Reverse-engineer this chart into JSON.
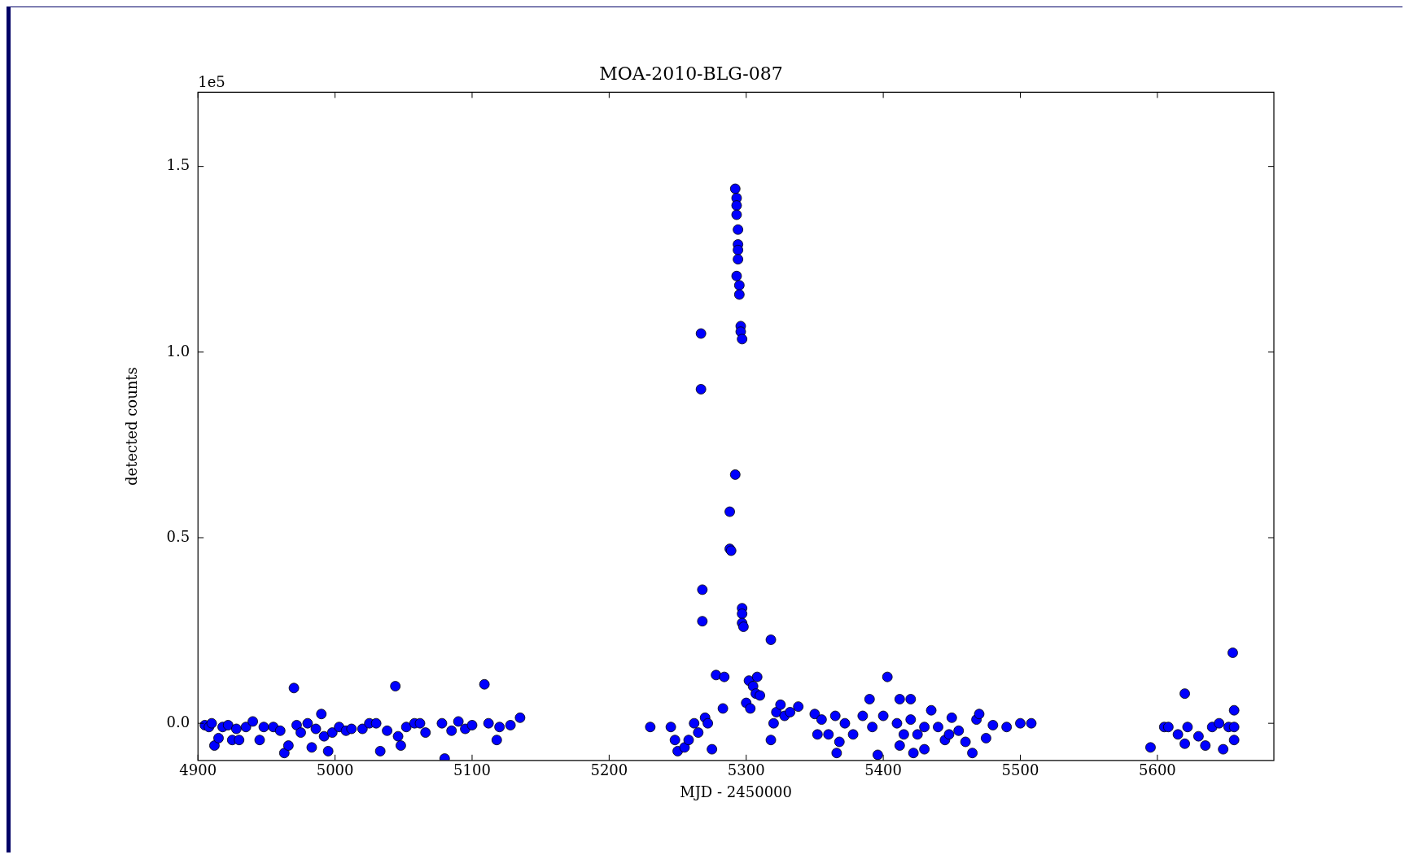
{
  "chart_data": {
    "type": "scatter",
    "title": "MOA-2010-BLG-087",
    "xlabel": "MJD - 2450000",
    "ylabel": "detected counts",
    "annotations": [
      "1e5"
    ],
    "marker": "circle",
    "grid": false,
    "xlim": [
      4900,
      5685
    ],
    "xticks": [
      4900,
      5000,
      5100,
      5200,
      5300,
      5400,
      5500,
      5600
    ],
    "ylim": [
      -0.1,
      1.7
    ],
    "yticks": [
      {
        "value": 0,
        "label": "0.0"
      },
      0.5,
      {
        "value": 1,
        "label": "1.0"
      },
      1.5
    ],
    "series": [
      {
        "color": "#0000ff",
        "x": [
          4905,
          4908,
          4910,
          4912,
          4915,
          4918,
          4922,
          4925,
          4928,
          4930,
          4935,
          4940,
          4945,
          4948,
          4955,
          4960,
          4963,
          4966,
          4970,
          4972,
          4975,
          4980,
          4983,
          4986,
          4990,
          4992,
          4995,
          4998,
          5003,
          5008,
          5012,
          5020,
          5025,
          5030,
          5033,
          5038,
          5044,
          5046,
          5048,
          5052,
          5058,
          5062,
          5066,
          5078,
          5080,
          5085,
          5090,
          5095,
          5100,
          5109,
          5112,
          5118,
          5120,
          5128,
          5135,
          5230,
          5245,
          5248,
          5250,
          5255,
          5258,
          5262,
          5265,
          5267,
          5267,
          5268,
          5268,
          5270,
          5272,
          5275,
          5278,
          5283,
          5284,
          5288,
          5288,
          5289,
          5292,
          5292,
          5293,
          5293,
          5293,
          5294,
          5294,
          5294,
          5294,
          5293,
          5295,
          5295,
          5296,
          5296,
          5297,
          5297,
          5297,
          5297,
          5298,
          5300,
          5302,
          5303,
          5305,
          5307,
          5308,
          5310,
          5318,
          5318,
          5320,
          5322,
          5325,
          5328,
          5332,
          5338,
          5350,
          5352,
          5355,
          5360,
          5365,
          5366,
          5368,
          5372,
          5378,
          5385,
          5390,
          5392,
          5396,
          5400,
          5403,
          5410,
          5412,
          5412,
          5415,
          5420,
          5420,
          5422,
          5425,
          5430,
          5430,
          5435,
          5440,
          5445,
          5448,
          5450,
          5455,
          5460,
          5465,
          5468,
          5470,
          5475,
          5480,
          5490,
          5500,
          5508,
          5595,
          5605,
          5608,
          5615,
          5620,
          5620,
          5622,
          5630,
          5635,
          5640,
          5645,
          5648,
          5652,
          5655,
          5656,
          5656,
          5656
        ],
        "values": [
          -0.005,
          -0.01,
          0,
          -0.06,
          -0.04,
          -0.01,
          -0.005,
          -0.045,
          -0.015,
          -0.045,
          -0.01,
          0.005,
          -0.045,
          -0.01,
          -0.01,
          -0.02,
          -0.08,
          -0.06,
          0.095,
          -0.005,
          -0.025,
          0,
          -0.065,
          -0.015,
          0.025,
          -0.035,
          -0.075,
          -0.025,
          -0.01,
          -0.02,
          -0.015,
          -0.015,
          0,
          0,
          -0.075,
          -0.02,
          0.1,
          -0.035,
          -0.06,
          -0.01,
          0,
          0,
          -0.025,
          0,
          -0.095,
          -0.02,
          0.005,
          -0.015,
          -0.005,
          0.105,
          0,
          -0.045,
          -0.01,
          -0.005,
          0.015,
          -0.01,
          -0.01,
          -0.045,
          -0.075,
          -0.065,
          -0.045,
          0,
          -0.025,
          1.05,
          0.9,
          0.36,
          0.275,
          0.015,
          0,
          -0.07,
          0.13,
          0.04,
          0.125,
          0.57,
          0.47,
          0.465,
          0.67,
          1.44,
          1.415,
          1.395,
          1.37,
          1.33,
          1.29,
          1.275,
          1.25,
          1.205,
          1.18,
          1.155,
          1.07,
          1.055,
          1.035,
          0.31,
          0.295,
          0.27,
          0.26,
          0.055,
          0.115,
          0.04,
          0.1,
          0.08,
          0.125,
          0.075,
          0.225,
          -0.045,
          0,
          0.03,
          0.05,
          0.02,
          0.03,
          0.045,
          0.025,
          -0.03,
          0.01,
          -0.03,
          0.02,
          -0.08,
          -0.05,
          0,
          -0.03,
          0.02,
          0.065,
          -0.01,
          -0.085,
          0.02,
          0.125,
          0,
          0.065,
          -0.06,
          -0.03,
          0.065,
          0.01,
          -0.08,
          -0.03,
          -0.01,
          -0.07,
          0.035,
          -0.01,
          -0.045,
          -0.03,
          0.015,
          -0.02,
          -0.05,
          -0.08,
          0.01,
          0.025,
          -0.04,
          -0.005,
          -0.01,
          0,
          0,
          -0.065,
          -0.01,
          -0.01,
          -0.03,
          0.08,
          -0.055,
          -0.01,
          -0.035,
          -0.06,
          -0.01,
          0,
          -0.07,
          -0.01,
          0.19,
          0.035,
          -0.045,
          -0.01
        ]
      }
    ]
  }
}
